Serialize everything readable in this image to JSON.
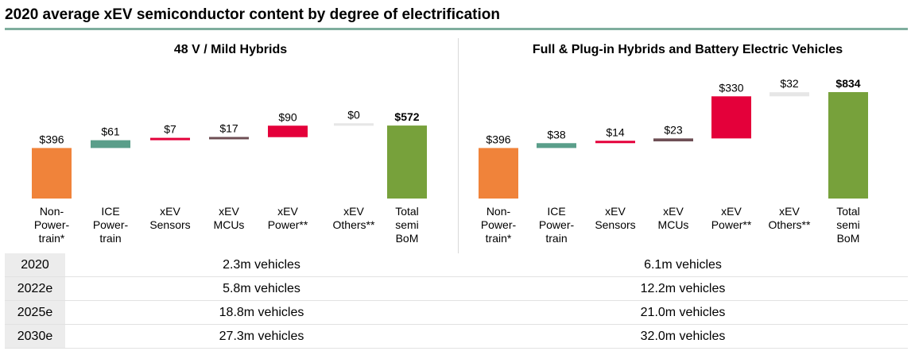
{
  "title": "2020 average xEV semiconductor content by degree of electrification",
  "colors": {
    "orange": "#f0833a",
    "teal": "#5a9e8a",
    "red": "#e4003a",
    "mauve": "#6e4f55",
    "grey": "#e6e6e6",
    "green": "#77a13b",
    "rule": "#7fae9e"
  },
  "chart_data": [
    {
      "type": "bar",
      "subtype": "waterfall",
      "title": "48 V / Mild Hybrids",
      "categories": [
        "Non-\nPower-\ntrain*",
        "ICE\nPower-\ntrain",
        "xEV\nSensors",
        "xEV\nMCUs",
        "xEV\nPower**",
        "xEV\nOthers**",
        "Total\nsemi\nBoM"
      ],
      "values": [
        396,
        61,
        7,
        17,
        90,
        0,
        572
      ],
      "value_labels": [
        "$396",
        "$61",
        "$7",
        "$17",
        "$90",
        "$0",
        "$572"
      ],
      "bar_kinds": [
        "base",
        "increment",
        "increment",
        "increment",
        "increment",
        "increment",
        "total"
      ],
      "bar_colors": [
        "orange",
        "teal",
        "red",
        "mauve",
        "red",
        "grey",
        "green"
      ],
      "ylim": [
        0,
        850
      ]
    },
    {
      "type": "bar",
      "subtype": "waterfall",
      "title": "Full & Plug-in Hybrids and Battery Electric Vehicles",
      "categories": [
        "Non-\nPower-\ntrain*",
        "ICE\nPower-\ntrain",
        "xEV\nSensors",
        "xEV\nMCUs",
        "xEV\nPower**",
        "xEV\nOthers**",
        "Total\nsemi\nBoM"
      ],
      "values": [
        396,
        38,
        14,
        23,
        330,
        32,
        834
      ],
      "value_labels": [
        "$396",
        "$38",
        "$14",
        "$23",
        "$330",
        "$32",
        "$834"
      ],
      "bar_kinds": [
        "base",
        "increment",
        "increment",
        "increment",
        "increment",
        "increment",
        "total"
      ],
      "bar_colors": [
        "orange",
        "teal",
        "red",
        "mauve",
        "red",
        "grey",
        "green"
      ],
      "ylim": [
        0,
        850
      ]
    }
  ],
  "table": {
    "rows": [
      {
        "year": "2020",
        "mild": "2.3m vehicles",
        "full": "6.1m vehicles"
      },
      {
        "year": "2022e",
        "mild": "5.8m vehicles",
        "full": "12.2m vehicles"
      },
      {
        "year": "2025e",
        "mild": "18.8m vehicles",
        "full": "21.0m vehicles"
      },
      {
        "year": "2030e",
        "mild": "27.3m vehicles",
        "full": "32.0m vehicles"
      }
    ]
  }
}
